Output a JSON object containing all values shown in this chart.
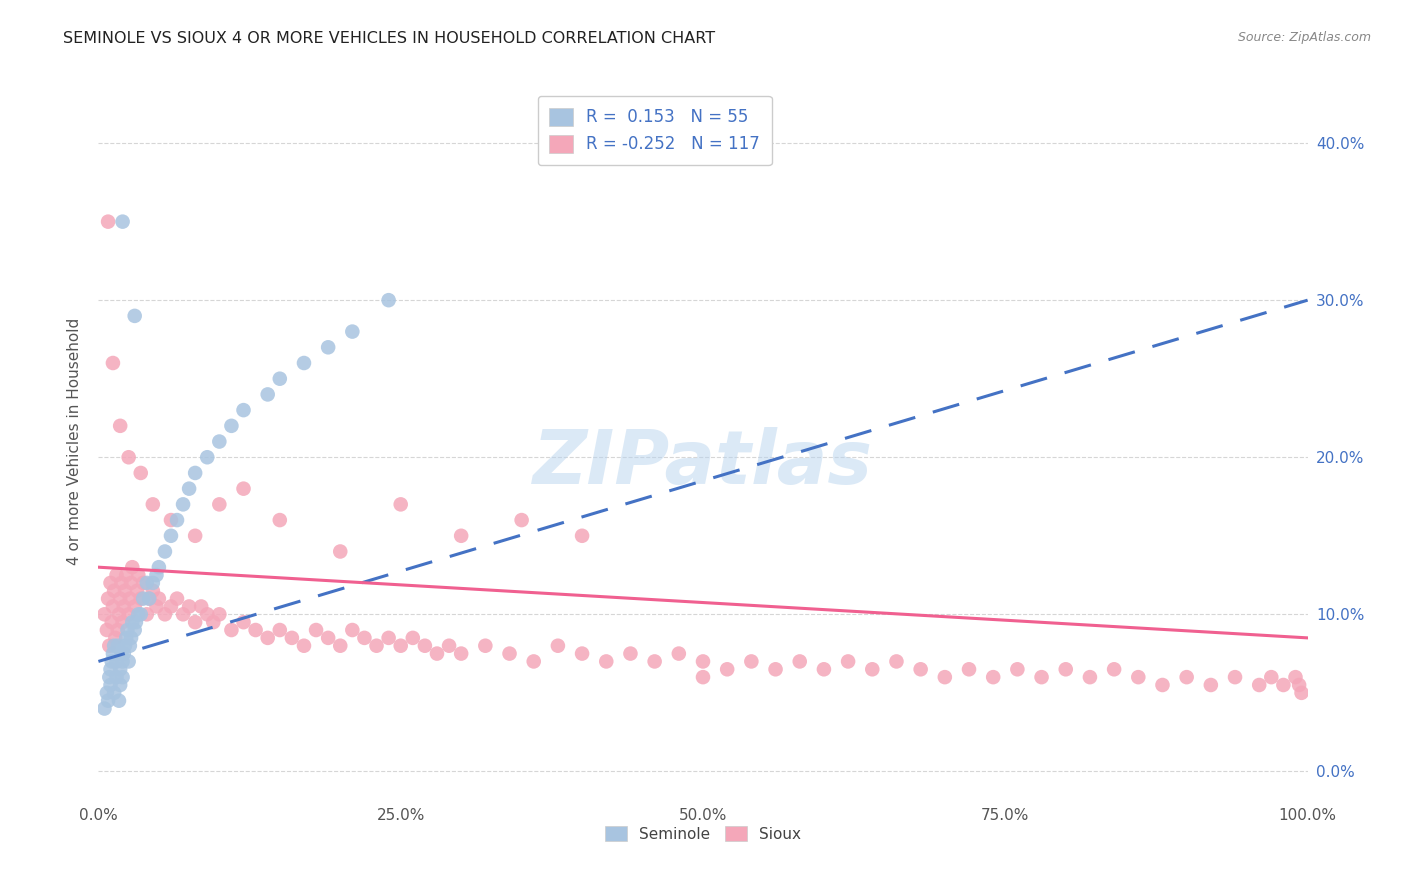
{
  "title": "SEMINOLE VS SIOUX 4 OR MORE VEHICLES IN HOUSEHOLD CORRELATION CHART",
  "source": "Source: ZipAtlas.com",
  "ylabel": "4 or more Vehicles in Household",
  "xlim": [
    0.0,
    1.0
  ],
  "ylim": [
    -0.02,
    0.44
  ],
  "xticks": [
    0.0,
    0.25,
    0.5,
    0.75,
    1.0
  ],
  "xtick_labels": [
    "0.0%",
    "25.0%",
    "50.0%",
    "75.0%",
    "100.0%"
  ],
  "yticks": [
    0.0,
    0.1,
    0.2,
    0.3,
    0.4
  ],
  "ytick_labels": [
    "0.0%",
    "10.0%",
    "20.0%",
    "30.0%",
    "40.0%"
  ],
  "seminole_color": "#a8c4e0",
  "sioux_color": "#f4a7b9",
  "seminole_line_color": "#4472c4",
  "sioux_line_color": "#f06090",
  "R_seminole": 0.153,
  "N_seminole": 55,
  "R_sioux": -0.252,
  "N_sioux": 117,
  "watermark": "ZIPatlas",
  "seminole_x": [
    0.005,
    0.007,
    0.008,
    0.009,
    0.01,
    0.01,
    0.011,
    0.012,
    0.013,
    0.013,
    0.015,
    0.015,
    0.016,
    0.017,
    0.018,
    0.018,
    0.019,
    0.02,
    0.02,
    0.021,
    0.022,
    0.023,
    0.024,
    0.025,
    0.026,
    0.027,
    0.028,
    0.03,
    0.031,
    0.033,
    0.035,
    0.037,
    0.04,
    0.042,
    0.045,
    0.048,
    0.05,
    0.055,
    0.06,
    0.065,
    0.07,
    0.075,
    0.08,
    0.09,
    0.1,
    0.11,
    0.12,
    0.14,
    0.15,
    0.17,
    0.19,
    0.21,
    0.24,
    0.02,
    0.03
  ],
  "seminole_y": [
    0.04,
    0.05,
    0.045,
    0.06,
    0.055,
    0.065,
    0.07,
    0.075,
    0.05,
    0.08,
    0.06,
    0.07,
    0.08,
    0.045,
    0.055,
    0.065,
    0.075,
    0.06,
    0.07,
    0.075,
    0.08,
    0.085,
    0.09,
    0.07,
    0.08,
    0.085,
    0.095,
    0.09,
    0.095,
    0.1,
    0.1,
    0.11,
    0.12,
    0.11,
    0.12,
    0.125,
    0.13,
    0.14,
    0.15,
    0.16,
    0.17,
    0.18,
    0.19,
    0.2,
    0.21,
    0.22,
    0.23,
    0.24,
    0.25,
    0.26,
    0.27,
    0.28,
    0.3,
    0.35,
    0.29
  ],
  "sioux_x": [
    0.005,
    0.007,
    0.008,
    0.009,
    0.01,
    0.011,
    0.012,
    0.013,
    0.014,
    0.015,
    0.016,
    0.017,
    0.018,
    0.019,
    0.02,
    0.021,
    0.022,
    0.023,
    0.025,
    0.026,
    0.027,
    0.028,
    0.03,
    0.032,
    0.033,
    0.035,
    0.037,
    0.04,
    0.042,
    0.045,
    0.048,
    0.05,
    0.055,
    0.06,
    0.065,
    0.07,
    0.075,
    0.08,
    0.085,
    0.09,
    0.095,
    0.1,
    0.11,
    0.12,
    0.13,
    0.14,
    0.15,
    0.16,
    0.17,
    0.18,
    0.19,
    0.2,
    0.21,
    0.22,
    0.23,
    0.24,
    0.25,
    0.26,
    0.27,
    0.28,
    0.29,
    0.3,
    0.32,
    0.34,
    0.36,
    0.38,
    0.4,
    0.42,
    0.44,
    0.46,
    0.48,
    0.5,
    0.52,
    0.54,
    0.56,
    0.58,
    0.6,
    0.62,
    0.64,
    0.66,
    0.68,
    0.7,
    0.72,
    0.74,
    0.76,
    0.78,
    0.8,
    0.82,
    0.84,
    0.86,
    0.88,
    0.9,
    0.92,
    0.94,
    0.96,
    0.97,
    0.98,
    0.99,
    0.993,
    0.995,
    0.008,
    0.012,
    0.018,
    0.025,
    0.035,
    0.045,
    0.06,
    0.08,
    0.1,
    0.12,
    0.15,
    0.2,
    0.25,
    0.3,
    0.35,
    0.4,
    0.5
  ],
  "sioux_y": [
    0.1,
    0.09,
    0.11,
    0.08,
    0.12,
    0.095,
    0.105,
    0.115,
    0.085,
    0.125,
    0.09,
    0.1,
    0.11,
    0.12,
    0.095,
    0.105,
    0.115,
    0.125,
    0.1,
    0.11,
    0.12,
    0.13,
    0.105,
    0.115,
    0.125,
    0.11,
    0.12,
    0.1,
    0.11,
    0.115,
    0.105,
    0.11,
    0.1,
    0.105,
    0.11,
    0.1,
    0.105,
    0.095,
    0.105,
    0.1,
    0.095,
    0.1,
    0.09,
    0.095,
    0.09,
    0.085,
    0.09,
    0.085,
    0.08,
    0.09,
    0.085,
    0.08,
    0.09,
    0.085,
    0.08,
    0.085,
    0.08,
    0.085,
    0.08,
    0.075,
    0.08,
    0.075,
    0.08,
    0.075,
    0.07,
    0.08,
    0.075,
    0.07,
    0.075,
    0.07,
    0.075,
    0.07,
    0.065,
    0.07,
    0.065,
    0.07,
    0.065,
    0.07,
    0.065,
    0.07,
    0.065,
    0.06,
    0.065,
    0.06,
    0.065,
    0.06,
    0.065,
    0.06,
    0.065,
    0.06,
    0.055,
    0.06,
    0.055,
    0.06,
    0.055,
    0.06,
    0.055,
    0.06,
    0.055,
    0.05,
    0.35,
    0.26,
    0.22,
    0.2,
    0.19,
    0.17,
    0.16,
    0.15,
    0.17,
    0.18,
    0.16,
    0.14,
    0.17,
    0.15,
    0.16,
    0.15,
    0.06
  ]
}
